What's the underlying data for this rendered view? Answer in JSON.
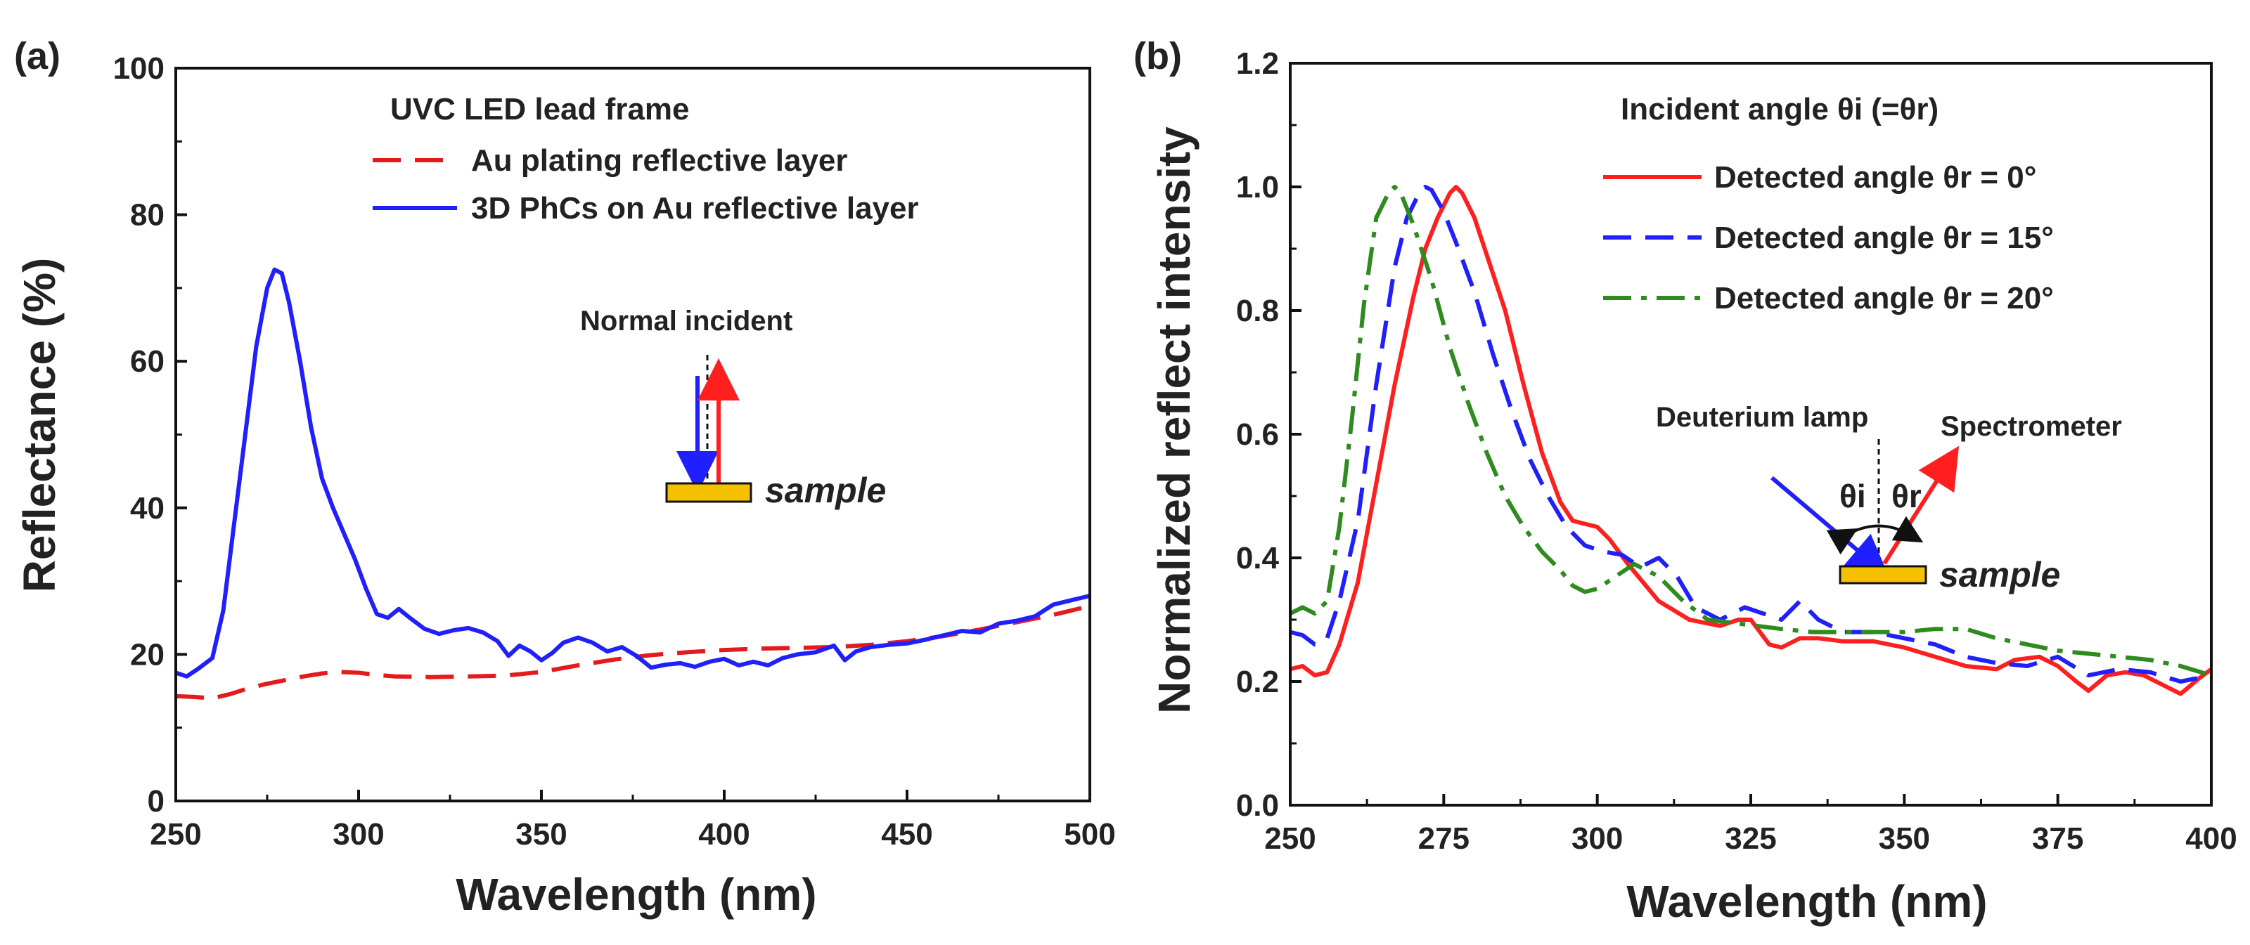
{
  "chart_data": [
    {
      "panel_label": "(a)",
      "type": "line",
      "xlabel": "Wavelength (nm)",
      "ylabel": "Reflectance (%)",
      "xlim": [
        250,
        500
      ],
      "ylim": [
        0,
        100
      ],
      "xticks": [
        250,
        300,
        350,
        400,
        450,
        500
      ],
      "yticks": [
        0,
        20,
        40,
        60,
        80,
        100
      ],
      "legend_title": "UVC LED lead frame",
      "series": [
        {
          "name": "Au plating reflective layer",
          "color": "#e41a1c",
          "dash": "dashed",
          "x": [
            250,
            255,
            260,
            265,
            270,
            275,
            280,
            285,
            290,
            295,
            300,
            305,
            310,
            320,
            330,
            340,
            350,
            360,
            370,
            380,
            390,
            400,
            410,
            420,
            430,
            440,
            450,
            460,
            470,
            480,
            490,
            500
          ],
          "y": [
            14.3,
            14.2,
            14.0,
            14.6,
            15.4,
            16.0,
            16.5,
            17.0,
            17.4,
            17.6,
            17.5,
            17.2,
            17.0,
            16.9,
            17.0,
            17.1,
            17.6,
            18.5,
            19.3,
            19.9,
            20.3,
            20.6,
            20.8,
            20.9,
            21.0,
            21.3,
            21.8,
            22.5,
            23.4,
            24.4,
            25.4,
            26.6
          ]
        },
        {
          "name": "3D PhCs on Au reflective layer",
          "color": "#1f1fff",
          "dash": "solid",
          "x": [
            250,
            253,
            256,
            260,
            263,
            266,
            269,
            272,
            275,
            277,
            279,
            281,
            284,
            287,
            290,
            293,
            296,
            299,
            302,
            305,
            308,
            311,
            314,
            318,
            322,
            326,
            330,
            334,
            338,
            341,
            344,
            347,
            350,
            353,
            356,
            360,
            364,
            368,
            372,
            376,
            380,
            384,
            388,
            392,
            396,
            400,
            404,
            408,
            412,
            416,
            420,
            425,
            430,
            433,
            436,
            440,
            445,
            450,
            455,
            460,
            465,
            470,
            475,
            480,
            485,
            490,
            495,
            500
          ],
          "y": [
            17.5,
            17.0,
            18.0,
            19.5,
            26.0,
            38.0,
            50.0,
            62.0,
            70.0,
            72.5,
            72.0,
            68.0,
            60.0,
            51.0,
            44.0,
            40.0,
            36.5,
            33.0,
            29.0,
            25.5,
            25.0,
            26.2,
            25.0,
            23.5,
            22.8,
            23.3,
            23.6,
            23.0,
            21.8,
            19.8,
            21.2,
            20.4,
            19.2,
            20.2,
            21.6,
            22.3,
            21.6,
            20.4,
            21.0,
            19.8,
            18.2,
            18.6,
            18.8,
            18.3,
            19.0,
            19.4,
            18.5,
            19.0,
            18.5,
            19.5,
            20.0,
            20.3,
            21.2,
            19.2,
            20.4,
            21.0,
            21.3,
            21.5,
            22.0,
            22.6,
            23.2,
            23.0,
            24.2,
            24.6,
            25.2,
            26.8,
            27.4,
            28.0
          ]
        }
      ],
      "inset": {
        "title": "Normal incident",
        "label": "sample"
      }
    },
    {
      "panel_label": "(b)",
      "type": "line",
      "xlabel": "Wavelength (nm)",
      "ylabel": "Normalized reflect intensity",
      "xlim": [
        250,
        400
      ],
      "ylim": [
        0.0,
        1.2
      ],
      "xticks": [
        250,
        275,
        300,
        325,
        350,
        375,
        400
      ],
      "yticks": [
        0.0,
        0.2,
        0.4,
        0.6,
        0.8,
        1.0,
        1.2
      ],
      "legend_title": "Incident angle θi (=θr)",
      "series": [
        {
          "name": "Detected angle θr = 0°",
          "color": "#ff1f1f",
          "dash": "solid",
          "x": [
            250,
            252,
            254,
            256,
            258,
            261,
            264,
            267,
            270,
            272,
            274,
            276,
            277,
            278,
            280,
            282,
            285,
            288,
            291,
            294,
            296,
            298,
            300,
            302,
            305,
            310,
            315,
            320,
            323,
            325,
            328,
            330,
            333,
            336,
            340,
            345,
            350,
            355,
            360,
            365,
            368,
            372,
            375,
            378,
            380,
            383,
            386,
            389,
            392,
            395,
            398,
            400
          ],
          "y": [
            0.22,
            0.225,
            0.21,
            0.215,
            0.26,
            0.36,
            0.52,
            0.68,
            0.82,
            0.9,
            0.95,
            0.99,
            1.0,
            0.99,
            0.95,
            0.89,
            0.8,
            0.68,
            0.57,
            0.49,
            0.46,
            0.455,
            0.45,
            0.43,
            0.39,
            0.33,
            0.3,
            0.29,
            0.3,
            0.3,
            0.26,
            0.255,
            0.27,
            0.27,
            0.265,
            0.265,
            0.255,
            0.24,
            0.225,
            0.22,
            0.235,
            0.24,
            0.225,
            0.2,
            0.185,
            0.21,
            0.215,
            0.21,
            0.195,
            0.18,
            0.205,
            0.22
          ]
        },
        {
          "name": "Detected angle θr = 15°",
          "color": "#1f1fff",
          "dash": "dashed",
          "x": [
            250,
            252,
            254,
            256,
            258,
            261,
            264,
            267,
            269,
            271,
            272,
            273,
            275,
            277,
            280,
            283,
            286,
            289,
            292,
            295,
            298,
            301,
            304,
            307,
            310,
            313,
            316,
            320,
            324,
            327,
            330,
            333,
            336,
            340,
            345,
            350,
            355,
            360,
            365,
            370,
            375,
            380,
            385,
            390,
            395,
            400
          ],
          "y": [
            0.28,
            0.275,
            0.26,
            0.27,
            0.33,
            0.46,
            0.68,
            0.87,
            0.95,
            0.99,
            1.0,
            0.995,
            0.96,
            0.91,
            0.83,
            0.73,
            0.64,
            0.56,
            0.5,
            0.45,
            0.42,
            0.41,
            0.405,
            0.385,
            0.4,
            0.37,
            0.32,
            0.3,
            0.32,
            0.31,
            0.3,
            0.33,
            0.3,
            0.28,
            0.28,
            0.27,
            0.26,
            0.24,
            0.23,
            0.225,
            0.24,
            0.21,
            0.22,
            0.215,
            0.2,
            0.21
          ]
        },
        {
          "name": "Detected angle θr = 20°",
          "color": "#2e8b1e",
          "dash": "dashdot",
          "x": [
            250,
            252,
            254,
            256,
            258,
            260,
            262,
            264,
            266,
            267,
            268,
            270,
            273,
            276,
            279,
            282,
            285,
            288,
            291,
            294,
            296,
            298,
            300,
            303,
            306,
            310,
            314,
            318,
            322,
            326,
            330,
            335,
            340,
            345,
            350,
            355,
            360,
            365,
            370,
            375,
            380,
            385,
            390,
            395,
            400
          ],
          "y": [
            0.31,
            0.32,
            0.31,
            0.33,
            0.45,
            0.62,
            0.81,
            0.95,
            0.99,
            1.0,
            0.99,
            0.94,
            0.85,
            0.74,
            0.65,
            0.57,
            0.5,
            0.45,
            0.41,
            0.38,
            0.355,
            0.345,
            0.35,
            0.37,
            0.39,
            0.37,
            0.33,
            0.3,
            0.295,
            0.29,
            0.285,
            0.28,
            0.28,
            0.28,
            0.28,
            0.285,
            0.285,
            0.27,
            0.26,
            0.25,
            0.245,
            0.24,
            0.235,
            0.225,
            0.21
          ]
        }
      ],
      "inset": {
        "source": "Deuterium lamp",
        "detector": "Spectrometer",
        "theta_i": "θi",
        "theta_r": "θr",
        "label": "sample"
      }
    }
  ]
}
